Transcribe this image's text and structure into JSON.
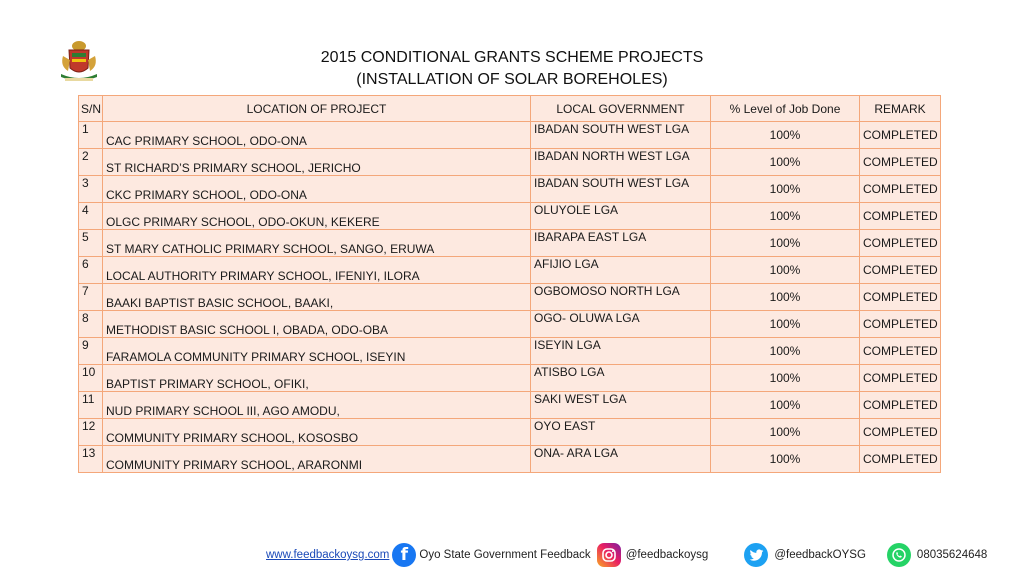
{
  "header": {
    "title_line1": "2015 CONDITIONAL GRANTS SCHEME PROJECTS",
    "title_line2": "(INSTALLATION OF SOLAR BOREHOLES)"
  },
  "table": {
    "columns": [
      "S/N",
      "LOCATION OF PROJECT",
      "LOCAL GOVERNMENT",
      "% Level  of Job Done",
      "REMARK"
    ],
    "rows": [
      {
        "sn": "1",
        "location": "CAC PRIMARY SCHOOL, ODO-ONA",
        "lga": "IBADAN SOUTH WEST LGA",
        "level": "100%",
        "remark": "COMPLETED"
      },
      {
        "sn": "2",
        "location": "ST RICHARD’S PRIMARY SCHOOL, JERICHO",
        "lga": "IBADAN NORTH WEST LGA",
        "level": "100%",
        "remark": "COMPLETED"
      },
      {
        "sn": "3",
        "location": "CKC PRIMARY SCHOOL, ODO-ONA",
        "lga": "IBADAN SOUTH WEST LGA",
        "level": "100%",
        "remark": "COMPLETED"
      },
      {
        "sn": "4",
        "location": "OLGC PRIMARY SCHOOL, ODO-OKUN, KEKERE",
        "lga": "OLUYOLE LGA",
        "level": "100%",
        "remark": "COMPLETED"
      },
      {
        "sn": "5",
        "location": "ST MARY CATHOLIC PRIMARY SCHOOL, SANGO, ERUWA",
        "lga": "IBARAPA EAST LGA",
        "level": "100%",
        "remark": "COMPLETED"
      },
      {
        "sn": "6",
        "location": "LOCAL AUTHORITY PRIMARY SCHOOL, IFENIYI, ILORA",
        "lga": "AFIJIO LGA",
        "level": "100%",
        "remark": "COMPLETED"
      },
      {
        "sn": "7",
        "location": "BAAKI BAPTIST BASIC SCHOOL, BAAKI,",
        "lga": "OGBOMOSO NORTH LGA",
        "level": "100%",
        "remark": "COMPLETED"
      },
      {
        "sn": "8",
        "location": "METHODIST BASIC SCHOOL I, OBADA, ODO-OBA",
        "lga": "OGO- OLUWA LGA",
        "level": "100%",
        "remark": "COMPLETED"
      },
      {
        "sn": "9",
        "location": "FARAMOLA COMMUNITY PRIMARY SCHOOL, ISEYIN",
        "lga": "ISEYIN LGA",
        "level": "100%",
        "remark": "COMPLETED"
      },
      {
        "sn": "10",
        "location": "BAPTIST PRIMARY SCHOOL, OFIKI,",
        "lga": "ATISBO LGA",
        "level": "100%",
        "remark": "COMPLETED"
      },
      {
        "sn": "11",
        "location": "NUD PRIMARY SCHOOL III, AGO AMODU,",
        "lga": "SAKI WEST LGA",
        "level": "100%",
        "remark": "COMPLETED"
      },
      {
        "sn": "12",
        "location": "COMMUNITY PRIMARY SCHOOL, KOSOSBO",
        "lga": "OYO EAST",
        "level": "100%",
        "remark": "COMPLETED"
      },
      {
        "sn": "13",
        "location": "COMMUNITY PRIMARY SCHOOL, ARARONMI",
        "lga": "ONA- ARA LGA",
        "level": "100%",
        "remark": "COMPLETED"
      }
    ]
  },
  "footer": {
    "website": "www.feedbackoysg.com",
    "facebook": "Oyo State Government Feedback",
    "instagram": "@feedbackoysg",
    "twitter": "@feedbackOYSG",
    "whatsapp": "08035624648",
    "icons": {
      "facebook": "facebook-icon",
      "instagram": "instagram-icon",
      "twitter": "twitter-icon",
      "whatsapp": "whatsapp-icon"
    },
    "colors": {
      "facebook": "#1877f2",
      "twitter": "#1da1f2",
      "whatsapp": "#25d366",
      "link": "#1a49b8"
    }
  },
  "colors": {
    "cell_fill": "#fde9e0",
    "cell_border": "#f4a77a"
  }
}
